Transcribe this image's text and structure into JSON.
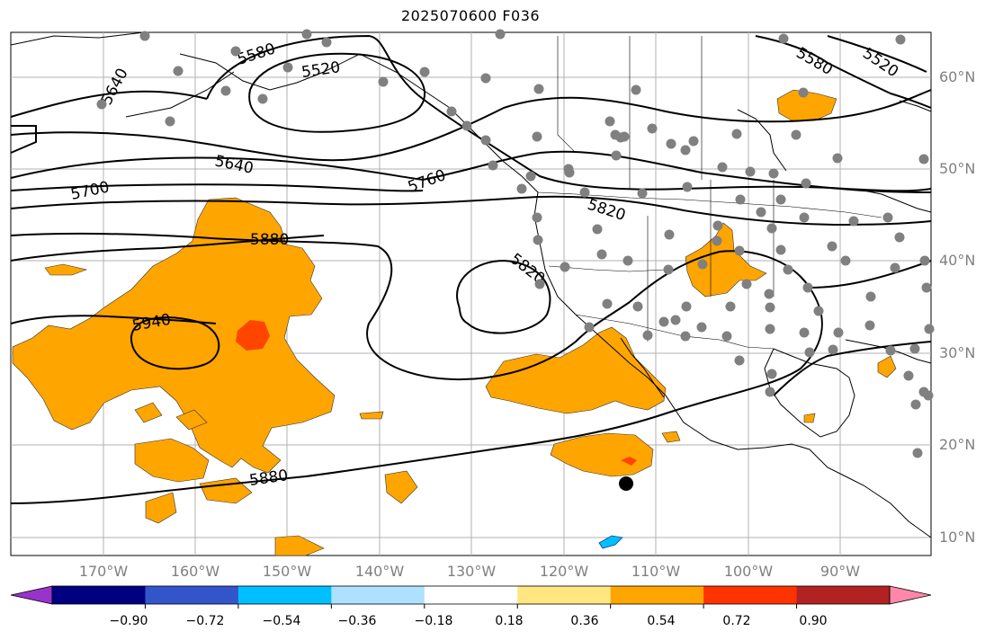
{
  "title": "2025070600 F036",
  "latitude_labels": [
    "60°N",
    "50°N",
    "40°N",
    "30°N",
    "20°N",
    "10°N"
  ],
  "longitude_labels": [
    "170°W",
    "160°W",
    "150°W",
    "140°W",
    "130°W",
    "120°W",
    "110°W",
    "100°W",
    "90°W"
  ],
  "contour_labels": [
    "5520",
    "5580",
    "5640",
    "5700",
    "5760",
    "5820",
    "5880",
    "5940"
  ],
  "colorbar": {
    "tick_labels": [
      "−0.90",
      "−0.72",
      "−0.54",
      "−0.36",
      "−0.18",
      "0.18",
      "0.36",
      "0.54",
      "0.72",
      "0.90"
    ],
    "colors": [
      "#9933cc",
      "#000080",
      "#3355cc",
      "#00bfff",
      "#aee1ff",
      "#ffffff",
      "#ffe680",
      "#ffa500",
      "#ff3300",
      "#b22222",
      "#ff88aa"
    ]
  },
  "colors": {
    "fill_0_36": "#ffa500",
    "fill_0_54": "#ff4500",
    "fill_negative": "#00bfff",
    "station_dots": "#808080",
    "grid": "#b0b0b0"
  }
}
